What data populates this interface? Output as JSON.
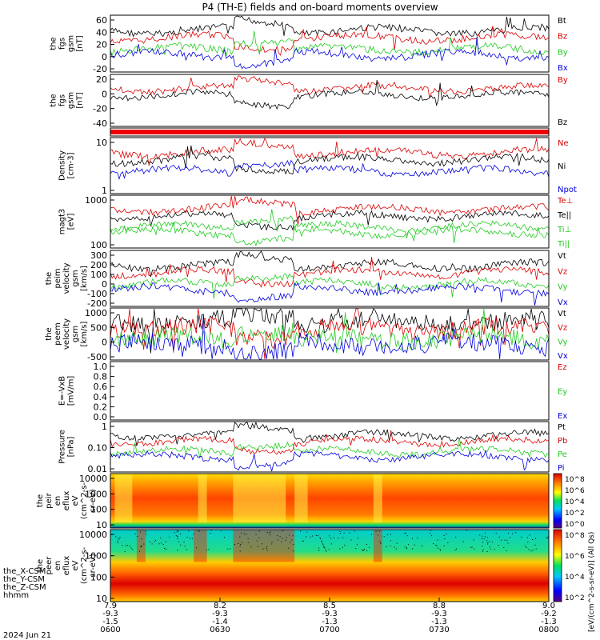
{
  "title": "P4 (TH-E) fields and on-board moments overview",
  "date_label": "2024 Jun 21",
  "time_axis": {
    "row_labels": [
      "the_X-CSM",
      "the_Y-CSM",
      "the_Z-CSM",
      "hhmm"
    ],
    "columns": [
      {
        "x": "7.9",
        "y": "-9.3",
        "z": "-1.5",
        "time": "0600"
      },
      {
        "x": "8.2",
        "y": "-9.3",
        "z": "-1.4",
        "time": "0630"
      },
      {
        "x": "8.5",
        "y": "-9.3",
        "z": "-1.3",
        "time": "0700"
      },
      {
        "x": "8.8",
        "y": "-9.3",
        "z": "-1.3",
        "time": "0730"
      },
      {
        "x": "9.0",
        "y": "-9.2",
        "z": "-1.3",
        "time": "0800"
      }
    ]
  },
  "colors": {
    "black": "#000000",
    "red": "#dd0000",
    "green": "#22cc22",
    "blue": "#0000dd"
  },
  "colorbar": {
    "label": "[eV/(cm^2-s-sr-eV)] (All Qs)",
    "ticks_top": [
      "10^8",
      "10^6",
      "10^4",
      "10^2",
      "10^0"
    ],
    "ticks_bottom": [
      "10^8",
      "10^6",
      "10^4",
      "10^2"
    ]
  },
  "chart_data": [
    {
      "type": "line",
      "ylabel": [
        "the",
        "fgs",
        "gsm",
        "[nT]"
      ],
      "yticks": [
        "60",
        "40",
        "20",
        "0",
        "-20"
      ],
      "ylim": [
        -30,
        75
      ],
      "series": [
        {
          "name": "Bt",
          "color": "black"
        },
        {
          "name": "Bz",
          "color": "red"
        },
        {
          "name": "By",
          "color": "green"
        },
        {
          "name": "Bx",
          "color": "blue"
        }
      ]
    },
    {
      "type": "line",
      "ylabel": [
        "the",
        "fgs",
        "gsm",
        "[nT]"
      ],
      "yticks": [
        "20",
        "0",
        "-20",
        "-40"
      ],
      "ylim": [
        -60,
        30
      ],
      "series": [
        {
          "name": "By",
          "color": "red"
        },
        {
          "name": "Bz",
          "color": "black"
        }
      ]
    },
    {
      "type": "bar",
      "note_row": "mode bar",
      "ylabel": [],
      "yticks": []
    },
    {
      "type": "line",
      "ylabel": [
        "Density",
        "[cm-3]"
      ],
      "yticks": [
        "10",
        "1"
      ],
      "yscale": "log",
      "series": [
        {
          "name": "Ne",
          "color": "red"
        },
        {
          "name": "Ni",
          "color": "black"
        },
        {
          "name": "Npot",
          "color": "blue"
        }
      ]
    },
    {
      "type": "line",
      "ylabel": [
        "magt3",
        "[eV]"
      ],
      "yticks": [
        "1000",
        "100"
      ],
      "yscale": "log",
      "series": [
        {
          "name": "Te⊥",
          "color": "red"
        },
        {
          "name": "Te||",
          "color": "black"
        },
        {
          "name": "Ti⊥",
          "color": "green"
        },
        {
          "name": "Ti||",
          "color": "green"
        }
      ]
    },
    {
      "type": "line",
      "ylabel": [
        "the",
        "peim",
        "velocity",
        "gsm",
        "[km/s]"
      ],
      "yticks": [
        "300",
        "200",
        "100",
        "0",
        "-100",
        "-200"
      ],
      "ylim": [
        -250,
        320
      ],
      "series": [
        {
          "name": "Vt",
          "color": "black"
        },
        {
          "name": "Vz",
          "color": "red"
        },
        {
          "name": "Vy",
          "color": "green"
        },
        {
          "name": "Vx",
          "color": "blue"
        }
      ]
    },
    {
      "type": "line",
      "ylabel": [
        "the",
        "peem",
        "velocity",
        "gsm",
        "[km/s]"
      ],
      "yticks": [
        "1000",
        "500",
        "0",
        "-500"
      ],
      "ylim": [
        -800,
        1300
      ],
      "series": [
        {
          "name": "Vt",
          "color": "black"
        },
        {
          "name": "Vz",
          "color": "red"
        },
        {
          "name": "Vy",
          "color": "green"
        },
        {
          "name": "Vx",
          "color": "blue"
        }
      ]
    },
    {
      "type": "line",
      "ylabel": [
        "E=-VxB",
        "[mV/m]"
      ],
      "yticks": [
        "1.0",
        "0.8",
        "0.6",
        "0.4",
        "0.2",
        "0.0"
      ],
      "ylim": [
        0,
        1
      ],
      "series": [
        {
          "name": "Ez",
          "color": "red"
        },
        {
          "name": "Ey",
          "color": "green"
        },
        {
          "name": "Ex",
          "color": "blue"
        }
      ]
    },
    {
      "type": "line",
      "ylabel": [
        "Pressure",
        "[nPa]"
      ],
      "yticks": [
        "1",
        "0.10",
        "0.01"
      ],
      "yscale": "log",
      "series": [
        {
          "name": "Pt",
          "color": "black"
        },
        {
          "name": "Pb",
          "color": "red"
        },
        {
          "name": "Pe",
          "color": "green"
        },
        {
          "name": "Pi",
          "color": "blue"
        }
      ]
    },
    {
      "type": "heatmap",
      "ylabel": [
        "the",
        "peir",
        "en",
        "eflux",
        "eV",
        "(cm^2-s-",
        "sr-eV)"
      ],
      "yticks": [
        "10000",
        "1000",
        "100",
        "10"
      ],
      "yscale": "log"
    },
    {
      "type": "heatmap",
      "ylabel": [
        "the",
        "peer",
        "en",
        "eflux",
        "eV",
        "(cm^2-s-",
        "sr-eV)"
      ],
      "yticks": [
        "10000",
        "1000",
        "100",
        "10"
      ],
      "yscale": "log"
    }
  ]
}
